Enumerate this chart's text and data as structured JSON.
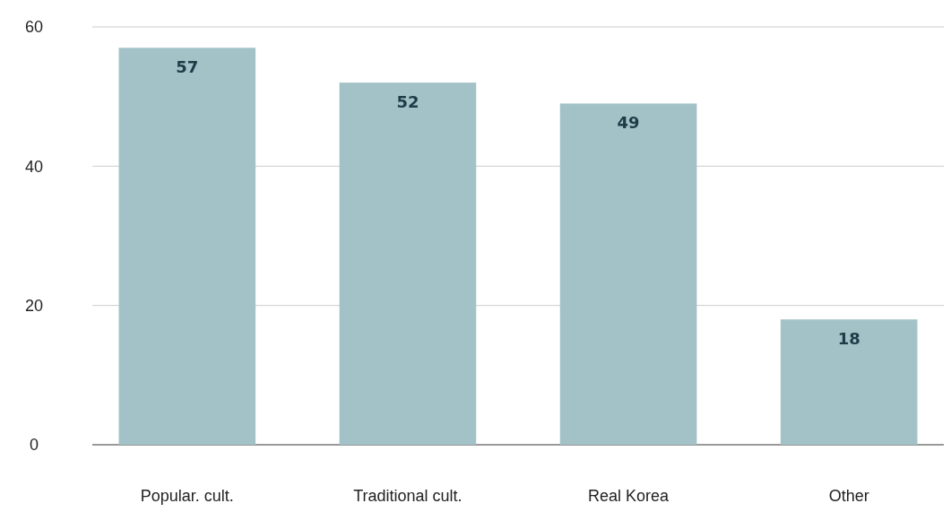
{
  "chart_data": {
    "type": "bar",
    "categories": [
      "Popular. cult.",
      "Traditional cult.",
      "Real Korea",
      "Other"
    ],
    "values": [
      57,
      52,
      49,
      18
    ],
    "color": "#a3c2c7",
    "ylim": [
      0,
      60
    ],
    "yticks": [
      0,
      20,
      40,
      60
    ],
    "grid": "y",
    "data_labels": true
  }
}
